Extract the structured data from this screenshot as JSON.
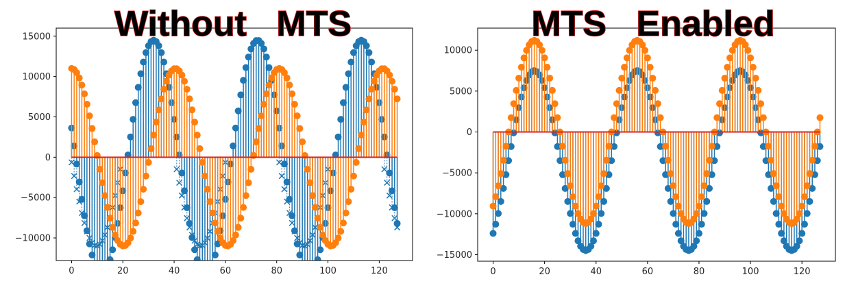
{
  "colors": {
    "series_a": "#1f77b4",
    "series_b": "#ff7f0e",
    "baseline": "#d62728",
    "axes": "#000000"
  },
  "chart_data": [
    {
      "type": "stem",
      "title": "Without   MTS",
      "xlim": [
        -6,
        133
      ],
      "ylim": [
        -12800,
        16000
      ],
      "xticks": [
        0,
        20,
        40,
        60,
        80,
        100,
        120
      ],
      "yticks": [
        -10000,
        -5000,
        0,
        5000,
        10000,
        15000
      ],
      "xtick_labels": [
        "0",
        "20",
        "40",
        "60",
        "80",
        "100",
        "120"
      ],
      "ytick_labels": [
        "−10000",
        "−5000",
        "0",
        "5000",
        "10000",
        "15000"
      ],
      "x_range": [
        0,
        127
      ],
      "series": [
        {
          "marker": "o",
          "color": "#1f77b4",
          "amplitude": 14500,
          "period": 40.5,
          "phase_x": 32,
          "offset": 0
        },
        {
          "marker": "x",
          "color": "#1f77b4",
          "amplitude": 11000,
          "period": 40.5,
          "phase_x": 30,
          "offset": 0,
          "clip_positive": true
        },
        {
          "marker": "o",
          "color": "#ff7f0e",
          "amplitude": 11000,
          "period": 40.5,
          "phase_x": 0,
          "offset": 0
        }
      ]
    },
    {
      "type": "stem",
      "title": "MTS   Enabled",
      "xlim": [
        -6,
        133
      ],
      "ylim": [
        -15800,
        12700
      ],
      "xticks": [
        0,
        20,
        40,
        60,
        80,
        100,
        120
      ],
      "yticks": [
        -15000,
        -10000,
        -5000,
        0,
        5000,
        10000
      ],
      "xtick_labels": [
        "0",
        "20",
        "40",
        "60",
        "80",
        "100",
        "120"
      ],
      "ytick_labels": [
        "−15000",
        "−10000",
        "−5000",
        "0",
        "5000",
        "10000"
      ],
      "x_range": [
        0,
        127
      ],
      "series": [
        {
          "marker": "o",
          "color": "#1f77b4",
          "amplitude": 11000,
          "period": 40,
          "phase_x": 16,
          "offset": -3500
        },
        {
          "marker": "o",
          "color": "#ff7f0e",
          "amplitude": 11200,
          "period": 40,
          "phase_x": 16,
          "offset": 0
        }
      ]
    }
  ]
}
